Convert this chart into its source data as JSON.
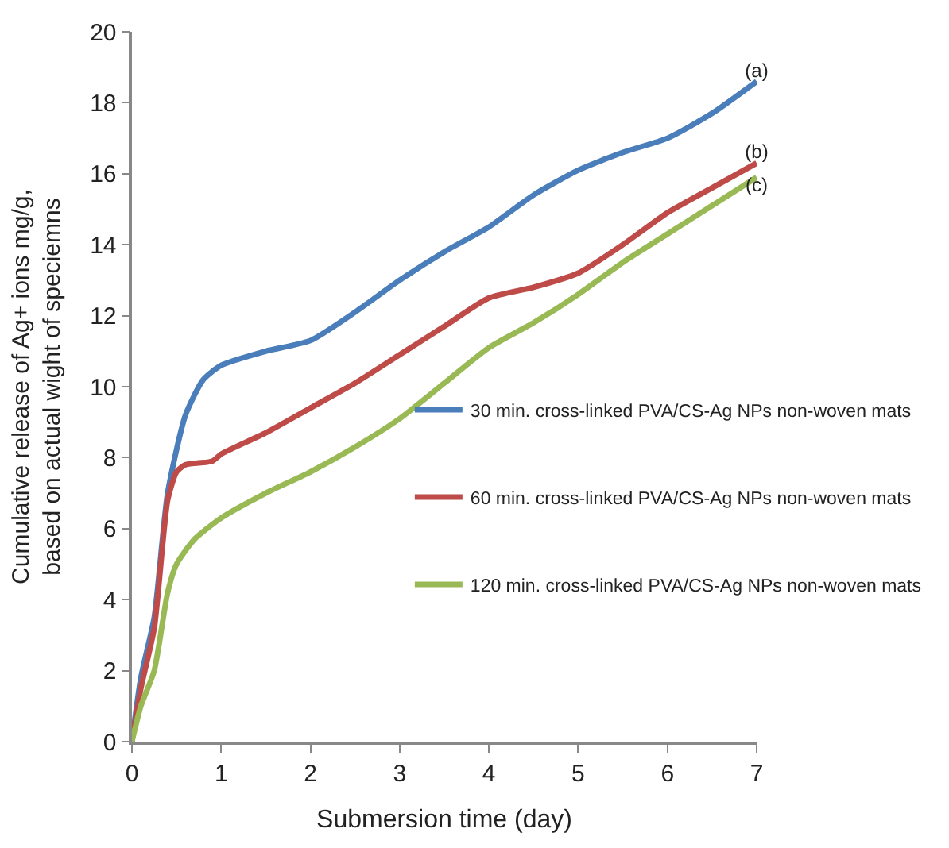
{
  "chart_data": {
    "type": "line",
    "xlabel": "Submersion time (day)",
    "ylabel": "Cumulative release of Ag+ ions mg/g,\nbased on actual wight of speciemns",
    "xlim": [
      0,
      7
    ],
    "xticks": [
      0,
      1,
      2,
      3,
      4,
      5,
      6,
      7
    ],
    "ylim": [
      0,
      20
    ],
    "yticks": [
      0,
      2,
      4,
      6,
      8,
      10,
      12,
      14,
      16,
      18,
      20
    ],
    "legend": "right",
    "marker": "none",
    "line_style": "solid",
    "series": [
      {
        "name": "30 min. cross-linked PVA/CS-Ag NPs non-woven mats",
        "color": "#4a7ebb",
        "x": [
          0,
          0.1,
          0.25,
          0.4,
          0.6,
          0.8,
          1,
          1.5,
          2,
          2.5,
          3,
          3.5,
          4,
          4.5,
          5,
          5.5,
          6,
          6.5,
          7
        ],
        "values": [
          0,
          1.8,
          3.5,
          7,
          9.2,
          10.2,
          10.6,
          11,
          11.3,
          12.1,
          13,
          13.8,
          14.5,
          15.4,
          16.1,
          16.6,
          17,
          17.7,
          18.6
        ]
      },
      {
        "name": "60 min. cross-linked PVA/CS-Ag NPs non-woven mats",
        "color": "#be4b48",
        "x": [
          0,
          0.1,
          0.25,
          0.4,
          0.5,
          0.6,
          0.9,
          1,
          1.5,
          2,
          2.5,
          3,
          3.5,
          4,
          4.5,
          5,
          5.5,
          6,
          6.5,
          7
        ],
        "values": [
          0,
          1.5,
          3.2,
          6.8,
          7.6,
          7.8,
          7.9,
          8.1,
          8.7,
          9.4,
          10.1,
          10.9,
          11.7,
          12.5,
          12.8,
          13.2,
          14,
          14.9,
          15.6,
          16.3
        ]
      },
      {
        "name": "120 min. cross-linked PVA/CS-Ag NPs non-woven mats",
        "color": "#98b954",
        "x": [
          0,
          0.1,
          0.25,
          0.4,
          0.5,
          0.7,
          1,
          1.5,
          2,
          2.5,
          3,
          3.5,
          4,
          4.5,
          5,
          5.5,
          6,
          6.5,
          7
        ],
        "values": [
          0,
          1,
          2,
          4.2,
          5,
          5.7,
          6.3,
          7,
          7.6,
          8.3,
          9.1,
          10.1,
          11.1,
          11.8,
          12.6,
          13.5,
          14.3,
          15.1,
          15.9
        ]
      }
    ],
    "annotations": [
      "(a)",
      "(b)",
      "(c)"
    ]
  }
}
